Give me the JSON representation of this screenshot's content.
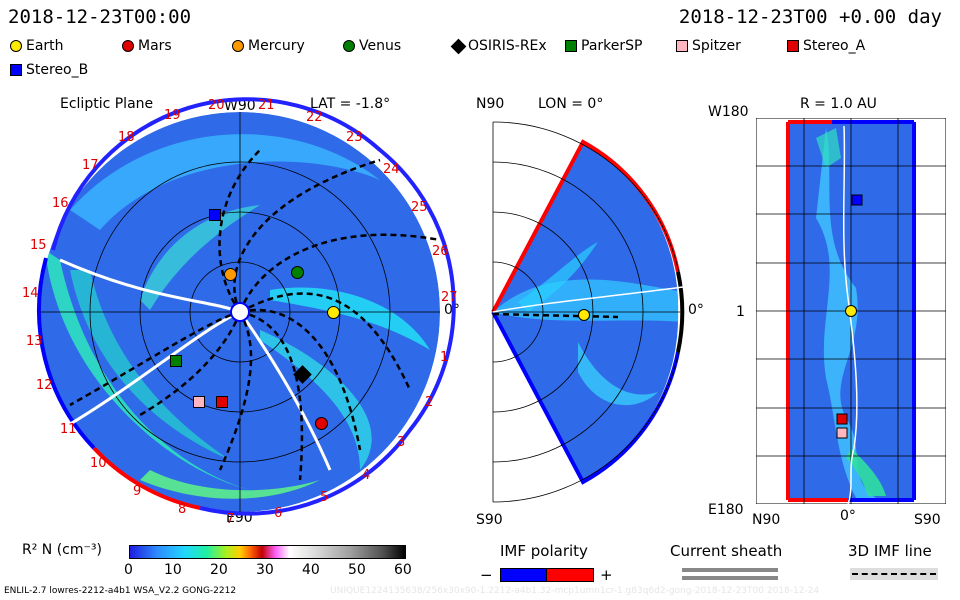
{
  "header": {
    "left_time": "2018-12-23T00:00",
    "right_time": "2018-12-23T00 +0.00 day"
  },
  "legend": [
    {
      "name": "Earth",
      "color": "#ffea00",
      "shape": "circle"
    },
    {
      "name": "Mars",
      "color": "#e00000",
      "shape": "circle"
    },
    {
      "name": "Mercury",
      "color": "#ff9900",
      "shape": "circle"
    },
    {
      "name": "Venus",
      "color": "#008000",
      "shape": "circle"
    },
    {
      "name": "OSIRIS-REx",
      "color": "#000000",
      "shape": "diamond"
    },
    {
      "name": "ParkerSP",
      "color": "#008000",
      "shape": "square"
    },
    {
      "name": "Spitzer",
      "color": "#ffb6c1",
      "shape": "square"
    },
    {
      "name": "Stereo_A",
      "color": "#e00000",
      "shape": "square"
    },
    {
      "name": "Stereo_B",
      "color": "#0000ff",
      "shape": "square"
    }
  ],
  "ecliptic": {
    "title": "Ecliptic Plane",
    "lat": "LAT = -1.8°",
    "top": "W90",
    "bottom": "E90",
    "right": "0°",
    "hours": [
      "1",
      "2",
      "3",
      "4",
      "5",
      "6",
      "7",
      "8",
      "9",
      "10",
      "11",
      "12",
      "13",
      "14",
      "15",
      "16",
      "17",
      "18",
      "19",
      "20",
      "21",
      "22",
      "23",
      "24",
      "25",
      "26",
      "27"
    ]
  },
  "meridional": {
    "top_left": "N90",
    "lon": "LON = 0°",
    "right": "0°",
    "bottom_left": "S90"
  },
  "radial": {
    "top_left": "W180",
    "r": "R = 1.0 AU",
    "mid": "1",
    "bottom_left": "E180",
    "xticks": [
      "N90",
      "0°",
      "S90"
    ]
  },
  "colorbar": {
    "label": "R² N (cm⁻³)",
    "ticks": [
      "0",
      "10",
      "20",
      "30",
      "40",
      "50",
      "60"
    ]
  },
  "imf_polarity": {
    "title": "IMF polarity",
    "minus": "−",
    "plus": "+",
    "neg_color": "#0000ff",
    "pos_color": "#ff0000"
  },
  "current_sheath": {
    "title": "Current sheath"
  },
  "imf_line": {
    "title": "3D IMF line"
  },
  "footer": {
    "left": "ENLIL-2.7 lowres-2212-a4b1 WSA_V2.2 GONG-2212",
    "right": "UNIQUE1224135638/256x30x90-1.2212-a4b1.32-mcp1umn1cr-1.g83q6d2-gong-2018-12-23T00    2018-12-24"
  }
}
